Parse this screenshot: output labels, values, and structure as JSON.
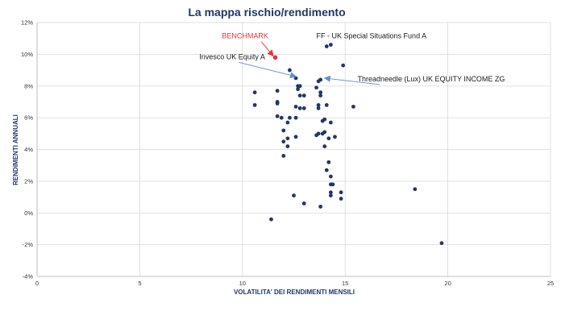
{
  "chart_data": {
    "type": "scatter",
    "title": "La mappa rischio/rendimento",
    "xlabel": "VOLATILITA' DEI RENDIMENTI MENSILI",
    "ylabel": "RENDIMENTI ANNUALI",
    "xlim": [
      0,
      25
    ],
    "ylim": [
      -4,
      12
    ],
    "x_ticks": [
      0,
      5,
      10,
      15,
      20,
      25
    ],
    "x_tick_labels": [
      "0",
      "5",
      "10",
      "15",
      "20",
      "25"
    ],
    "y_ticks": [
      -4,
      -2,
      0,
      2,
      4,
      6,
      8,
      10,
      12
    ],
    "y_tick_labels": [
      "-4%",
      "-2%",
      "0%",
      "2%",
      "4%",
      "6%",
      "8%",
      "10%",
      "12%"
    ],
    "grid": true,
    "colors": {
      "points": "#1f3864",
      "benchmark": "#e8333a",
      "arrow": "#5b8fd6",
      "grid": "#d9d9d9"
    },
    "points": [
      {
        "x": 10.6,
        "y": 7.6
      },
      {
        "x": 10.6,
        "y": 6.8
      },
      {
        "x": 11.4,
        "y": -0.4
      },
      {
        "x": 11.7,
        "y": 7.7
      },
      {
        "x": 11.7,
        "y": 7.0
      },
      {
        "x": 11.7,
        "y": 6.9
      },
      {
        "x": 11.7,
        "y": 6.1
      },
      {
        "x": 11.9,
        "y": 6.0
      },
      {
        "x": 12.0,
        "y": 5.2
      },
      {
        "x": 12.0,
        "y": 4.5
      },
      {
        "x": 12.0,
        "y": 3.6
      },
      {
        "x": 12.2,
        "y": 5.7
      },
      {
        "x": 12.2,
        "y": 4.7
      },
      {
        "x": 12.2,
        "y": 4.2
      },
      {
        "x": 12.3,
        "y": 9.0
      },
      {
        "x": 12.3,
        "y": 6.0
      },
      {
        "x": 12.5,
        "y": 1.1
      },
      {
        "x": 12.6,
        "y": 4.8
      },
      {
        "x": 12.6,
        "y": 8.5
      },
      {
        "x": 12.6,
        "y": 6.0
      },
      {
        "x": 12.6,
        "y": 6.7
      },
      {
        "x": 12.7,
        "y": 8.0
      },
      {
        "x": 12.7,
        "y": 7.8
      },
      {
        "x": 12.8,
        "y": 8.0
      },
      {
        "x": 12.8,
        "y": 7.4
      },
      {
        "x": 12.8,
        "y": 6.6
      },
      {
        "x": 13.0,
        "y": 7.4
      },
      {
        "x": 13.0,
        "y": 6.6
      },
      {
        "x": 13.0,
        "y": 0.6
      },
      {
        "x": 13.6,
        "y": 7.9
      },
      {
        "x": 13.6,
        "y": 4.9
      },
      {
        "x": 13.7,
        "y": 5.0
      },
      {
        "x": 13.7,
        "y": 8.3
      },
      {
        "x": 13.8,
        "y": 8.4
      },
      {
        "x": 13.8,
        "y": 7.6
      },
      {
        "x": 13.8,
        "y": 7.4
      },
      {
        "x": 13.7,
        "y": 6.8
      },
      {
        "x": 13.7,
        "y": 6.6
      },
      {
        "x": 13.8,
        "y": 0.4
      },
      {
        "x": 13.9,
        "y": 5.8
      },
      {
        "x": 13.9,
        "y": 5.0
      },
      {
        "x": 14.0,
        "y": 5.9
      },
      {
        "x": 14.0,
        "y": 5.1
      },
      {
        "x": 14.0,
        "y": 4.2
      },
      {
        "x": 14.1,
        "y": 6.8
      },
      {
        "x": 14.1,
        "y": 2.7
      },
      {
        "x": 14.1,
        "y": 10.5
      },
      {
        "x": 14.2,
        "y": 3.2
      },
      {
        "x": 14.2,
        "y": 4.7
      },
      {
        "x": 14.3,
        "y": 10.6
      },
      {
        "x": 14.3,
        "y": 5.7
      },
      {
        "x": 14.3,
        "y": 2.3
      },
      {
        "x": 14.3,
        "y": 1.8
      },
      {
        "x": 14.3,
        "y": 1.3
      },
      {
        "x": 14.3,
        "y": 1.1
      },
      {
        "x": 14.4,
        "y": 1.8
      },
      {
        "x": 14.5,
        "y": 4.8
      },
      {
        "x": 14.8,
        "y": 1.3
      },
      {
        "x": 14.8,
        "y": 0.9
      },
      {
        "x": 14.9,
        "y": 9.3
      },
      {
        "x": 15.4,
        "y": 6.7
      },
      {
        "x": 18.4,
        "y": 1.5
      },
      {
        "x": 19.7,
        "y": -1.9
      }
    ],
    "benchmark": {
      "label": "BENCHMARK",
      "x": 11.6,
      "y": 9.8
    },
    "annotations": [
      {
        "label": "BENCHMARK",
        "text_x": 9.0,
        "text_y": 11.0,
        "anchor": "start",
        "color": "benchmark",
        "arrow_to": [
          11.5,
          9.9
        ]
      },
      {
        "label": "FF - UK Special Situations Fund A",
        "text_x": 13.6,
        "text_y": 11.0,
        "anchor": "start",
        "color": "text",
        "arrow_to": null
      },
      {
        "label": "Invesco UK Equity A",
        "text_x": 7.9,
        "text_y": 9.7,
        "anchor": "start",
        "color": "text",
        "arrow_to": [
          12.6,
          8.6
        ]
      },
      {
        "label": "Threadneedle (Lux) UK EQUITY INCOME ZG",
        "text_x": 15.6,
        "text_y": 8.3,
        "anchor": "start",
        "color": "text",
        "arrow_to": [
          14.0,
          8.5
        ]
      }
    ]
  }
}
